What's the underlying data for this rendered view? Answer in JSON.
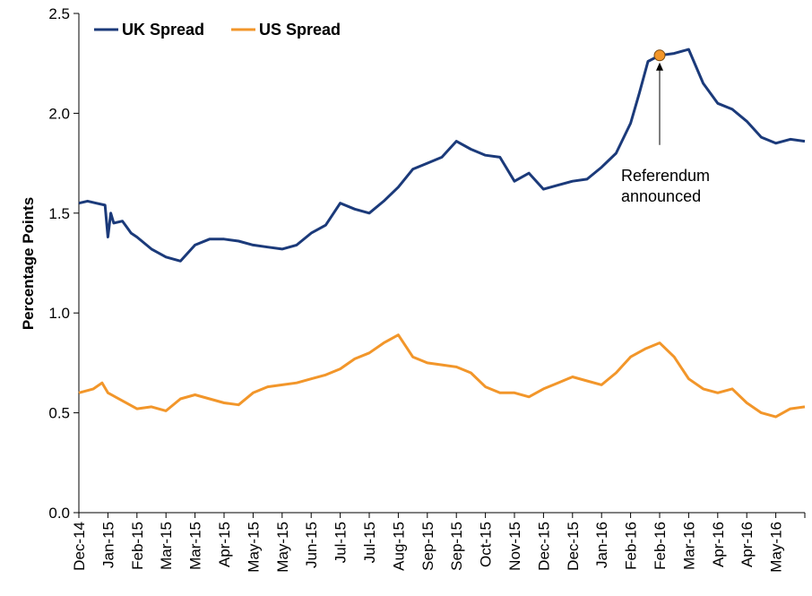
{
  "chart_data": {
    "type": "line",
    "ylabel": "Percentage Points",
    "ylim": [
      0,
      2.5
    ],
    "yticks": [
      "0.0",
      "0.5",
      "1.0",
      "1.5",
      "2.0",
      "2.5"
    ],
    "x_tick_labels": [
      "Dec-14",
      "Jan-15",
      "Feb-15",
      "Mar-15",
      "Mar-15",
      "Apr-15",
      "May-15",
      "May-15",
      "Jun-15",
      "Jul-15",
      "Jul-15",
      "Aug-15",
      "Sep-15",
      "Sep-15",
      "Oct-15",
      "Nov-15",
      "Dec-15",
      "Dec-15",
      "Jan-16",
      "Feb-16",
      "Feb-16",
      "Mar-16",
      "Apr-16",
      "Apr-16",
      "May-16"
    ],
    "legend_position": "top-left",
    "series": [
      {
        "name": "UK Spread",
        "color": "#1b3a7a",
        "x": [
          0,
          0.3,
          0.6,
          0.9,
          1,
          1.1,
          1.2,
          1.5,
          1.8,
          2.0,
          2.5,
          3,
          3.5,
          4,
          4.5,
          5,
          5.5,
          6,
          6.5,
          7,
          7.5,
          8,
          8.5,
          9,
          9.5,
          10,
          10.5,
          11,
          11.5,
          12,
          12.5,
          13,
          13.5,
          14,
          14.5,
          15,
          15.5,
          16,
          16.5,
          17,
          17.5,
          18,
          18.5,
          19,
          19.3,
          19.6,
          20,
          20.5,
          21,
          21.5,
          22,
          22.5,
          23,
          23.5,
          24,
          24.5,
          25
        ],
        "values": [
          1.55,
          1.56,
          1.55,
          1.54,
          1.38,
          1.5,
          1.45,
          1.46,
          1.4,
          1.38,
          1.32,
          1.28,
          1.26,
          1.34,
          1.37,
          1.37,
          1.36,
          1.34,
          1.33,
          1.32,
          1.34,
          1.4,
          1.44,
          1.55,
          1.52,
          1.5,
          1.56,
          1.63,
          1.72,
          1.75,
          1.78,
          1.86,
          1.82,
          1.79,
          1.78,
          1.66,
          1.7,
          1.62,
          1.64,
          1.66,
          1.67,
          1.73,
          1.8,
          1.95,
          2.1,
          2.26,
          2.29,
          2.3,
          2.32,
          2.15,
          2.05,
          2.02,
          1.96,
          1.88,
          1.85,
          1.87,
          1.86
        ]
      },
      {
        "name": "US Spread",
        "color": "#f2962a",
        "x": [
          0,
          0.5,
          0.8,
          1,
          1.5,
          2,
          2.5,
          3,
          3.5,
          4,
          4.5,
          5,
          5.5,
          6,
          6.5,
          7,
          7.5,
          8,
          8.5,
          9,
          9.5,
          10,
          10.5,
          11,
          11.5,
          12,
          12.5,
          13,
          13.5,
          14,
          14.5,
          15,
          15.5,
          16,
          16.5,
          17,
          17.5,
          18,
          18.5,
          19,
          19.5,
          20,
          20.5,
          21,
          21.5,
          22,
          22.5,
          23,
          23.5,
          24,
          24.5,
          25
        ],
        "values": [
          0.6,
          0.62,
          0.65,
          0.6,
          0.56,
          0.52,
          0.53,
          0.51,
          0.57,
          0.59,
          0.57,
          0.55,
          0.54,
          0.6,
          0.63,
          0.64,
          0.65,
          0.67,
          0.69,
          0.72,
          0.77,
          0.8,
          0.85,
          0.89,
          0.78,
          0.75,
          0.74,
          0.73,
          0.7,
          0.63,
          0.6,
          0.6,
          0.58,
          0.62,
          0.65,
          0.68,
          0.66,
          0.64,
          0.7,
          0.78,
          0.82,
          0.85,
          0.78,
          0.67,
          0.62,
          0.6,
          0.62,
          0.55,
          0.5,
          0.48,
          0.52,
          0.53
        ]
      }
    ],
    "annotation": {
      "line1": "Referendum",
      "line2": "announced",
      "x": 20.0,
      "y": 2.29
    }
  }
}
